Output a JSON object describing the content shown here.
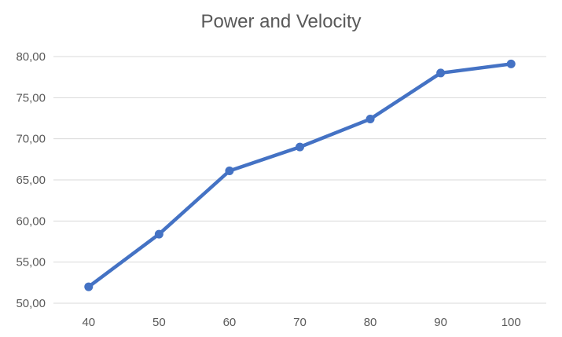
{
  "chart_data": {
    "type": "line",
    "title": "Power and Velocity",
    "xlabel": "",
    "ylabel": "",
    "x": [
      40,
      50,
      60,
      70,
      80,
      90,
      100
    ],
    "series": [
      {
        "values": [
          52.0,
          58.4,
          66.1,
          69.0,
          72.4,
          78.0,
          79.1
        ]
      }
    ],
    "ylim": [
      50,
      80
    ],
    "y_ticks": [
      "50,00",
      "55,00",
      "60,00",
      "65,00",
      "70,00",
      "75,00",
      "80,00"
    ],
    "x_ticks": [
      "40",
      "50",
      "60",
      "70",
      "80",
      "90",
      "100"
    ],
    "grid": true,
    "legend": "none",
    "line_color": "#4472C4",
    "grid_color": "#D9D9D9"
  }
}
